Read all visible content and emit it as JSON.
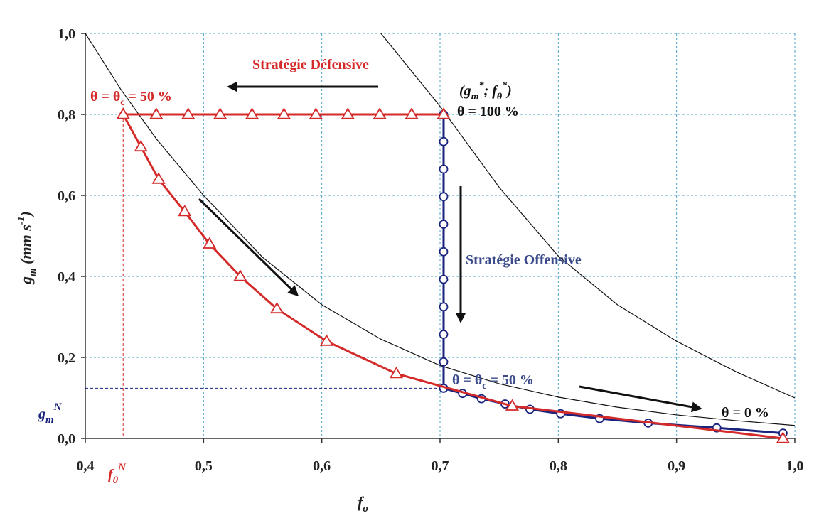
{
  "chart_data": {
    "type": "line",
    "xlabel": "f_o",
    "ylabel": "g_m (mm s-1)",
    "xlim": [
      0.4,
      1.0
    ],
    "ylim": [
      0.0,
      1.0
    ],
    "x_ticks": [
      "0,4",
      "0,5",
      "0,6",
      "0,7",
      "0,8",
      "0,9",
      "1,0"
    ],
    "y_ticks": [
      "0,0",
      "0,2",
      "0,4",
      "0,6",
      "0,8",
      "1,0"
    ],
    "grid": true,
    "series": [
      {
        "name": "Stratégie Défensive",
        "color": "#d42a2a",
        "marker": "triangle",
        "x": [
          0.703,
          0.676,
          0.649,
          0.622,
          0.595,
          0.568,
          0.541,
          0.514,
          0.487,
          0.46,
          0.432,
          0.432,
          0.447,
          0.462,
          0.484,
          0.505,
          0.531,
          0.562,
          0.604,
          0.663,
          0.761,
          0.99
        ],
        "y": [
          0.8,
          0.8,
          0.8,
          0.8,
          0.8,
          0.8,
          0.8,
          0.8,
          0.8,
          0.8,
          0.8,
          0.8,
          0.72,
          0.64,
          0.56,
          0.48,
          0.4,
          0.32,
          0.24,
          0.16,
          0.08,
          0.0
        ]
      },
      {
        "name": "Stratégie Offensive",
        "color": "#1a237e",
        "marker": "circle",
        "x": [
          0.703,
          0.703,
          0.703,
          0.703,
          0.703,
          0.703,
          0.703,
          0.703,
          0.703,
          0.703,
          0.703,
          0.703,
          0.719,
          0.735,
          0.755,
          0.776,
          0.802,
          0.835,
          0.876,
          0.934,
          0.99
        ],
        "y": [
          0.8,
          0.733,
          0.665,
          0.597,
          0.529,
          0.461,
          0.393,
          0.325,
          0.257,
          0.189,
          0.124,
          0.124,
          0.111,
          0.098,
          0.085,
          0.072,
          0.061,
          0.049,
          0.038,
          0.026,
          0.013
        ]
      }
    ],
    "reference_curves": [
      {
        "x": [
          0.4,
          0.43,
          0.46,
          0.5,
          0.55,
          0.6,
          0.65,
          0.7,
          0.75,
          0.8,
          0.85,
          0.9,
          0.95,
          1.0
        ],
        "y": [
          1.0,
          0.862,
          0.74,
          0.6,
          0.447,
          0.33,
          0.245,
          0.18,
          0.135,
          0.102,
          0.077,
          0.058,
          0.044,
          0.032
        ]
      },
      {
        "x": [
          0.65,
          0.7,
          0.75,
          0.8,
          0.85,
          0.9,
          0.95,
          1.0
        ],
        "y": [
          1.0,
          0.82,
          0.62,
          0.45,
          0.33,
          0.24,
          0.165,
          0.1
        ]
      }
    ],
    "guides": {
      "f0N": 0.432,
      "gmN": 0.124
    },
    "annotations": {
      "defensive": "Stratégie Défensive",
      "offensive": "Stratégie Offensive",
      "theta_c_left": "θ = θ",
      "theta_c_left_tail": " = 50 %",
      "theta_c_right": "θ = θ",
      "theta_c_right_tail": " = 50 %",
      "sub_c": "c",
      "theta_100": "θ = 100 %",
      "theta_0": "θ = 0 %",
      "star_point_open": "(g",
      "star_point_sub_m": "m",
      "star_point_mid": "; f",
      "star_point_sub_0": "θ",
      "star_point_close": ")",
      "star": "*",
      "f0N_base": "f",
      "f0N_sub": "0",
      "f0N_sup": "N",
      "gmN_base": "g",
      "gmN_sub": "m",
      "gmN_sup": "N",
      "xlabel_base": "f",
      "xlabel_sub": "o",
      "ylabel_base": "g",
      "ylabel_sub": "m",
      "ylabel_unit": " (mm s",
      "ylabel_exp": "-1",
      "ylabel_close": ")"
    },
    "colors": {
      "defensive": "#d42a2a",
      "offensive": "#1a237e",
      "offensive_text": "#3a4a8a",
      "grid": "#4aa3c8",
      "reference": "#111111"
    }
  }
}
